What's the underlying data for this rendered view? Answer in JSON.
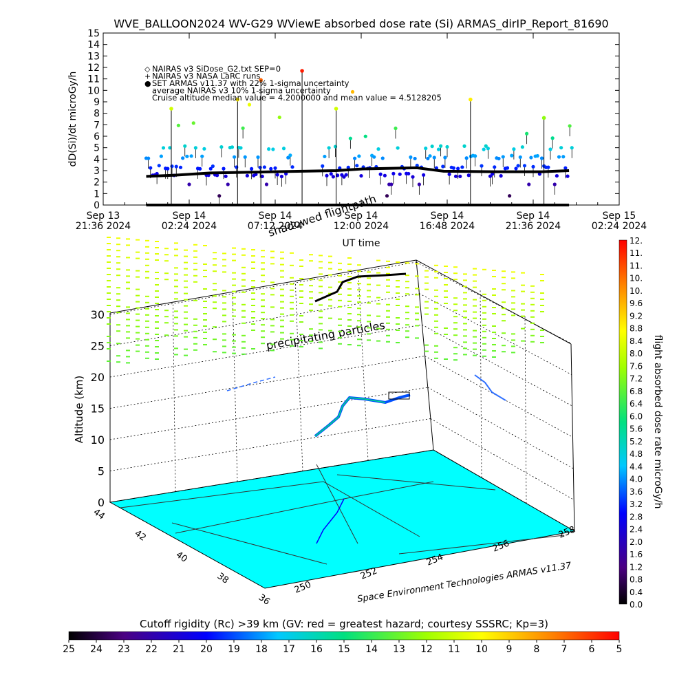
{
  "title": "WVE_BALLOON2024 WV-G29 WViewE absorbed dose rate (Si) ARMAS_dirIP_Report_81690",
  "credit": "Space Environment Technologies ARMAS v11.37",
  "annotations": {
    "shadowed_flightpath": "shadowed flightpath",
    "precipitating_particles": "precipitating particles"
  },
  "chart_data": [
    {
      "type": "scatter",
      "title": "WVE_BALLOON2024 WV-G29 WViewE absorbed dose rate (Si) ARMAS_dirIP_Report_81690",
      "xlabel": "UT time",
      "ylabel": "dD(Si)/dt microGy/h",
      "ylim": [
        0,
        15
      ],
      "y_ticks": [
        "0",
        "1",
        "2",
        "3",
        "4",
        "5",
        "6",
        "7",
        "8",
        "9",
        "10",
        "11",
        "12",
        "13",
        "14",
        "15"
      ],
      "x_ticks": [
        {
          "l1": "Sep 13",
          "l2": "21:36 2024"
        },
        {
          "l1": "Sep 14",
          "l2": "02:24 2024"
        },
        {
          "l1": "Sep 14",
          "l2": "07:12 2024"
        },
        {
          "l1": "Sep 14",
          "l2": "12:00 2024"
        },
        {
          "l1": "Sep 14",
          "l2": "16:48 2024"
        },
        {
          "l1": "Sep 14",
          "l2": "21:36 2024"
        },
        {
          "l1": "Sep 15",
          "l2": "02:24 2024"
        }
      ],
      "legend": [
        {
          "symbol": "◇",
          "text": "NAIRAS v3 SiDose_G2.txt SEP=0"
        },
        {
          "symbol": "+",
          "text": "NAIRAS v3 NASA LaRC runs"
        },
        {
          "symbol": "●",
          "text": "SET ARMAS v11.37 with 22% 1-sigma uncertainty"
        },
        {
          "symbol": "",
          "text": "average NAIRAS v3 10% 1-sigma uncertainty"
        },
        {
          "symbol": "",
          "text": "Cruise altitude median value = 4.2000000 and mean value = 4.5128205"
        }
      ],
      "legend_placement": "top-left",
      "series": [
        {
          "name": "NAIRAS v3 SiDose_G2.txt SEP=0",
          "style": "black thick line",
          "x_hours": [
            2.4,
            4.0,
            6.0,
            9.5,
            13.0,
            14.5,
            17.5,
            19.0,
            22.0,
            24.5,
            26.0
          ],
          "values": [
            2.5,
            2.6,
            2.8,
            2.9,
            3.0,
            3.15,
            3.25,
            2.95,
            2.9,
            2.9,
            3.0
          ]
        },
        {
          "name": "NAIRAS v3 NASA LaRC runs",
          "style": "black baseline",
          "value": 0
        }
      ],
      "armas_points_note": "colored points along 2-5 microGy/h with spikes up to ~11.7 microGy/h; colored by dose rate scale"
    },
    {
      "type": "scatter",
      "subtype": "3d flight track",
      "zlabel": "Altitude (km)",
      "z_ticks": [
        "0",
        "5",
        "10",
        "15",
        "20",
        "25",
        "30"
      ],
      "lat_ticks": [
        "36",
        "38",
        "40",
        "42",
        "44"
      ],
      "lon_ticks": [
        "250",
        "252",
        "254",
        "256",
        "258"
      ],
      "colorbar": {
        "label": "flight absorbed dose rate microGy/h",
        "ticks": [
          "0.0",
          "0.4",
          "0.8",
          "1.2",
          "1.6",
          "2.0",
          "2.4",
          "2.8",
          "3.2",
          "3.6",
          "4.0",
          "4.4",
          "4.8",
          "5.2",
          "5.6",
          "6.0",
          "6.4",
          "6.8",
          "7.2",
          "7.6",
          "8.0",
          "8.4",
          "8.8",
          "9.2",
          "9.6",
          "10.",
          "10.",
          "11.",
          "11.",
          "12."
        ]
      }
    },
    {
      "type": "heatmap",
      "subtype": "colorbar",
      "title": "Cutoff rigidity (Rc) >39 km (GV: red = greatest hazard; courtesy SSSRC; Kp=3)",
      "ticks": [
        "25",
        "24",
        "23",
        "22",
        "21",
        "20",
        "19",
        "18",
        "17",
        "16",
        "15",
        "14",
        "13",
        "12",
        "11",
        "10",
        "9",
        "8",
        "7",
        "6",
        "5"
      ]
    }
  ]
}
